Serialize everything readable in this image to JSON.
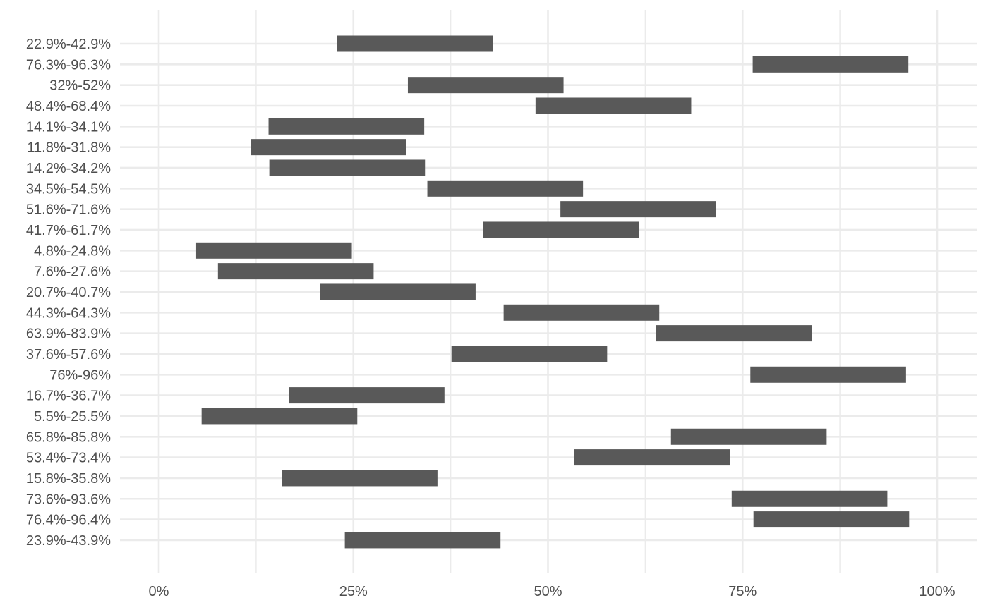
{
  "chart_data": {
    "type": "bar",
    "orientation": "horizontal",
    "title": "",
    "xlabel": "",
    "ylabel": "",
    "xlim": [
      0,
      100
    ],
    "x_ticks": [
      {
        "value": 0,
        "label": "0%"
      },
      {
        "value": 25,
        "label": "25%"
      },
      {
        "value": 50,
        "label": "50%"
      },
      {
        "value": 75,
        "label": "75%"
      },
      {
        "value": 100,
        "label": "100%"
      }
    ],
    "x_minor_ticks": [
      12.5,
      37.5,
      62.5,
      87.5
    ],
    "grid": true,
    "legend": "none",
    "bar_color": "#595959",
    "grid_color": "#ebebeb",
    "categories": [
      {
        "label": "22.9%-42.9%",
        "start": 22.9,
        "end": 42.9
      },
      {
        "label": "76.3%-96.3%",
        "start": 76.3,
        "end": 96.3
      },
      {
        "label": "32%-52%",
        "start": 32,
        "end": 52
      },
      {
        "label": "48.4%-68.4%",
        "start": 48.4,
        "end": 68.4
      },
      {
        "label": "14.1%-34.1%",
        "start": 14.1,
        "end": 34.1
      },
      {
        "label": "11.8%-31.8%",
        "start": 11.8,
        "end": 31.8
      },
      {
        "label": "14.2%-34.2%",
        "start": 14.2,
        "end": 34.2
      },
      {
        "label": "34.5%-54.5%",
        "start": 34.5,
        "end": 54.5
      },
      {
        "label": "51.6%-71.6%",
        "start": 51.6,
        "end": 71.6
      },
      {
        "label": "41.7%-61.7%",
        "start": 41.7,
        "end": 61.7
      },
      {
        "label": "4.8%-24.8%",
        "start": 4.8,
        "end": 24.8
      },
      {
        "label": "7.6%-27.6%",
        "start": 7.6,
        "end": 27.6
      },
      {
        "label": "20.7%-40.7%",
        "start": 20.7,
        "end": 40.7
      },
      {
        "label": "44.3%-64.3%",
        "start": 44.3,
        "end": 64.3
      },
      {
        "label": "63.9%-83.9%",
        "start": 63.9,
        "end": 83.9
      },
      {
        "label": "37.6%-57.6%",
        "start": 37.6,
        "end": 57.6
      },
      {
        "label": "76%-96%",
        "start": 76,
        "end": 96
      },
      {
        "label": "16.7%-36.7%",
        "start": 16.7,
        "end": 36.7
      },
      {
        "label": "5.5%-25.5%",
        "start": 5.5,
        "end": 25.5
      },
      {
        "label": "65.8%-85.8%",
        "start": 65.8,
        "end": 85.8
      },
      {
        "label": "53.4%-73.4%",
        "start": 53.4,
        "end": 73.4
      },
      {
        "label": "15.8%-35.8%",
        "start": 15.8,
        "end": 35.8
      },
      {
        "label": "73.6%-93.6%",
        "start": 73.6,
        "end": 93.6
      },
      {
        "label": "76.4%-96.4%",
        "start": 76.4,
        "end": 96.4
      },
      {
        "label": "23.9%-43.9%",
        "start": 23.9,
        "end": 43.9
      }
    ]
  }
}
